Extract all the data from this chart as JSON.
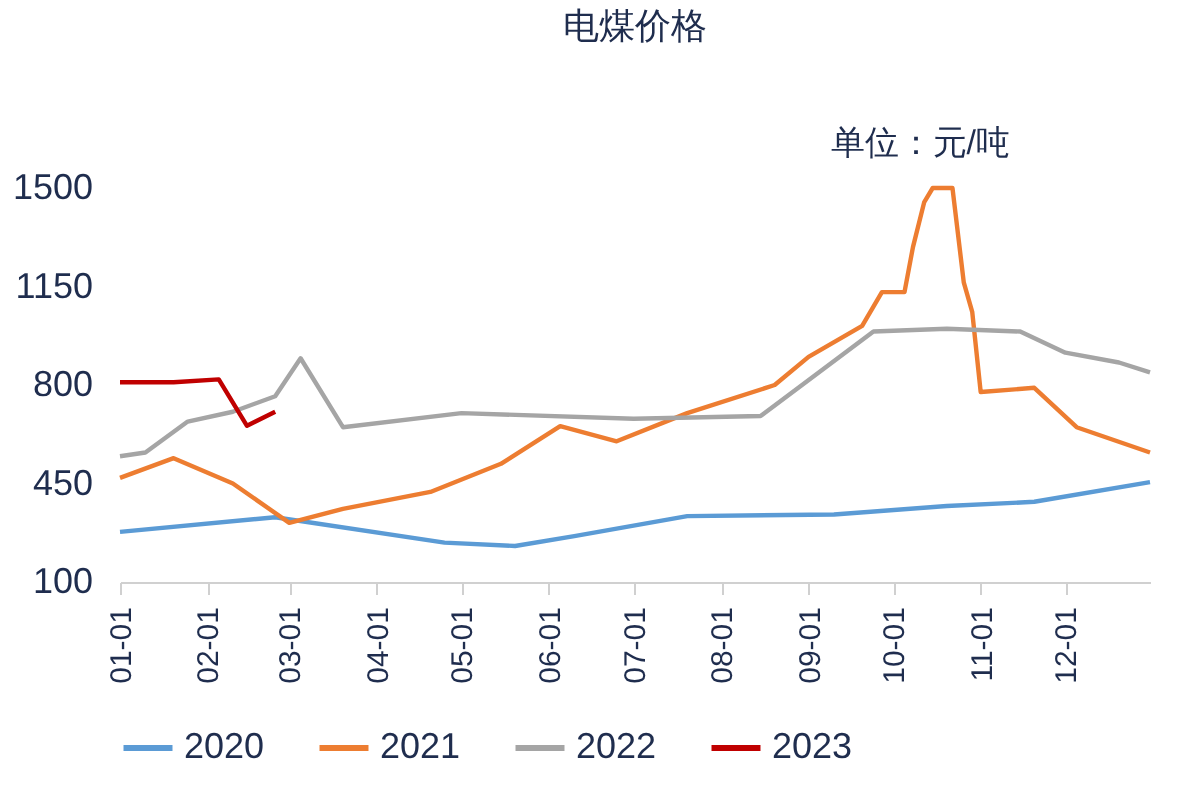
{
  "chart_data": {
    "type": "line",
    "title": "电煤价格",
    "annotations": [
      "单位：元/吨"
    ],
    "xlim": [
      "--01-01",
      "--12-31"
    ],
    "xticks": [
      {
        "value": "--01-01",
        "label": "01-01"
      },
      {
        "value": "--02-01",
        "label": "02-01"
      },
      {
        "value": "--03-01",
        "label": "03-01"
      },
      {
        "value": "--04-01",
        "label": "04-01"
      },
      {
        "value": "--05-01",
        "label": "05-01"
      },
      {
        "value": "--06-01",
        "label": "06-01"
      },
      {
        "value": "--07-01",
        "label": "07-01"
      },
      {
        "value": "--08-01",
        "label": "08-01"
      },
      {
        "value": "--09-01",
        "label": "09-01"
      },
      {
        "value": "--10-01",
        "label": "10-01"
      },
      {
        "value": "--11-01",
        "label": "11-01"
      },
      {
        "value": "--12-01",
        "label": "12-01"
      }
    ],
    "ylim": [
      100,
      1500
    ],
    "yticks": [
      100,
      450,
      800,
      1150,
      1500
    ],
    "grid": false,
    "legend": "bottom",
    "series": [
      {
        "name": "2020",
        "color": "#5b9bd5",
        "x": [
          "--01-01",
          "--02-25",
          "--04-25",
          "--05-20",
          "--06-10",
          "--07-20",
          "--09-10",
          "--10-20",
          "--11-20",
          "--12-31"
        ],
        "values": [
          278,
          330,
          240,
          228,
          263,
          334,
          340,
          370,
          385,
          455
        ]
      },
      {
        "name": "2021",
        "color": "#ed7d31",
        "x": [
          "--01-01",
          "--01-20",
          "--02-10",
          "--03-01",
          "--03-20",
          "--04-20",
          "--05-15",
          "--06-05",
          "--06-25",
          "--07-20",
          "--08-20",
          "--09-01",
          "--09-20",
          "--09-27",
          "--10-05",
          "--10-08",
          "--10-12",
          "--10-15",
          "--10-22",
          "--10-26",
          "--10-29",
          "--11-01",
          "--11-20",
          "--12-05",
          "--12-31"
        ],
        "values": [
          470,
          540,
          450,
          310,
          360,
          420,
          520,
          654,
          600,
          700,
          800,
          900,
          1010,
          1130,
          1130,
          1290,
          1450,
          1500,
          1500,
          1165,
          1060,
          775,
          790,
          650,
          560
        ]
      },
      {
        "name": "2022",
        "color": "#a5a5a5",
        "x": [
          "--01-01",
          "--01-10",
          "--01-25",
          "--02-10",
          "--02-25",
          "--03-05",
          "--03-20",
          "--05-01",
          "--07-01",
          "--08-15",
          "--09-24",
          "--10-20",
          "--11-15",
          "--12-01",
          "--12-20",
          "--12-31"
        ],
        "values": [
          547,
          560,
          670,
          705,
          760,
          895,
          650,
          700,
          680,
          690,
          990,
          1000,
          990,
          915,
          880,
          845
        ]
      },
      {
        "name": "2023",
        "color": "#c00000",
        "x": [
          "--01-01",
          "--01-20",
          "--02-05",
          "--02-15",
          "--02-25"
        ],
        "values": [
          810,
          810,
          820,
          655,
          705
        ]
      }
    ]
  }
}
